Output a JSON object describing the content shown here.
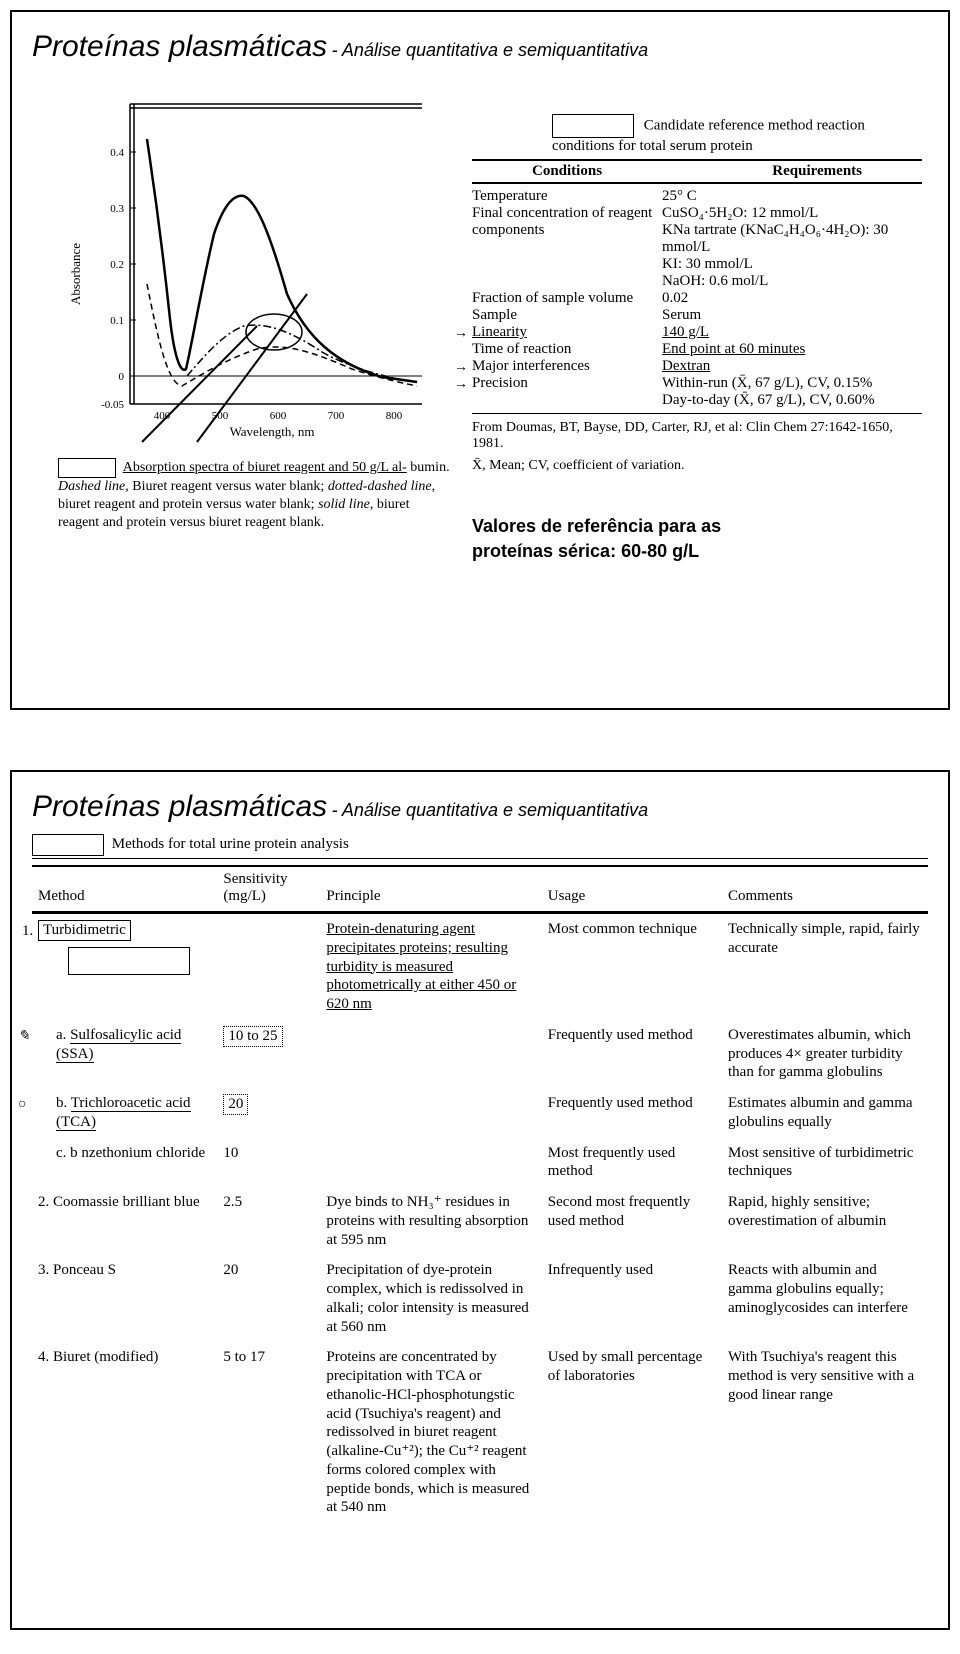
{
  "slide1": {
    "title_main": "Proteínas plasmáticas",
    "title_sep": " - ",
    "title_sub": "Análise quantitativa e semiquantitativa",
    "chart": {
      "type": "line",
      "x_label": "Wavelength, nm",
      "y_label": "Absorbance",
      "x_ticks": [
        "400",
        "500",
        "600",
        "700",
        "800"
      ],
      "y_ticks": [
        "-0.05",
        "0",
        "0.1",
        "0.2",
        "0.3",
        "0.4"
      ],
      "xlim": [
        350,
        850
      ],
      "ylim": [
        -0.05,
        0.45
      ],
      "line_color": "#000000",
      "bg_color": "#ffffff",
      "axis_fontsize": 11,
      "label_fontsize": 12,
      "series": [
        {
          "name": "dashed",
          "style": "dashed",
          "points": [
            [
              380,
              0.15
            ],
            [
              400,
              0.05
            ],
            [
              420,
              -0.02
            ],
            [
              470,
              0.02
            ],
            [
              510,
              0.04
            ],
            [
              550,
              0.06
            ],
            [
              590,
              0.07
            ],
            [
              640,
              0.065
            ],
            [
              700,
              0.04
            ],
            [
              760,
              0.01
            ],
            [
              820,
              -0.01
            ]
          ]
        },
        {
          "name": "solid",
          "style": "solid",
          "points": [
            [
              380,
              0.42
            ],
            [
              400,
              0.32
            ],
            [
              420,
              0.1
            ],
            [
              440,
              0.02
            ],
            [
              460,
              0.1
            ],
            [
              480,
              0.22
            ],
            [
              500,
              0.3
            ],
            [
              520,
              0.32
            ],
            [
              540,
              0.3
            ],
            [
              560,
              0.25
            ],
            [
              580,
              0.18
            ],
            [
              620,
              0.09
            ],
            [
              680,
              0.03
            ],
            [
              760,
              0.0
            ],
            [
              820,
              -0.01
            ]
          ]
        },
        {
          "name": "dotdash",
          "style": "dotdash",
          "points": [
            [
              440,
              0.0
            ],
            [
              480,
              0.06
            ],
            [
              520,
              0.095
            ],
            [
              560,
              0.1
            ],
            [
              600,
              0.09
            ],
            [
              640,
              0.07
            ],
            [
              700,
              0.04
            ],
            [
              780,
              0.01
            ]
          ]
        }
      ],
      "annotation_lines": true
    },
    "chart_caption_lead": "Absorption spectra of biuret reagent and 50 g/L al-",
    "chart_caption_rest": "bumin. Dashed line, Biuret reagent versus water blank; dotted-dashed line, biuret reagent and protein versus water blank; solid line, biuret reagent and protein versus biuret reagent blank.",
    "table": {
      "caption": "Candidate reference method reaction conditions for total serum protein",
      "head_left": "Conditions",
      "head_right": "Requirements",
      "rows": [
        {
          "c1": "Temperature",
          "c2": "25° C",
          "arrow": false,
          "u": false
        },
        {
          "c1": "Final concentration of reagent components",
          "c2": "CuSO₄·5H₂O: 12 mmol/L\nKNa tartrate (KNaC₄H₄O₆·4H₂O): 30 mmol/L\nKI: 30 mmol/L\nNaOH: 0.6 mol/L",
          "arrow": false,
          "u": false
        },
        {
          "c1": "Fraction of sample volume",
          "c2": "0.02",
          "arrow": false,
          "u": false
        },
        {
          "c1": "Sample",
          "c2": "Serum",
          "arrow": false,
          "u": false
        },
        {
          "c1": "Linearity",
          "c2": "140 g/L",
          "arrow": true,
          "u": true,
          "u2": true
        },
        {
          "c1": "Time of reaction",
          "c2": "End point at 60 minutes",
          "arrow": false,
          "u": false,
          "u2": true
        },
        {
          "c1": "Major interferences",
          "c2": "Dextran",
          "arrow": true,
          "u": false,
          "u2": true
        },
        {
          "c1": "Precision",
          "c2": "Within-run (X̄, 67 g/L), CV, 0.15%\nDay-to-day (X̄, 67 g/L), CV, 0.60%",
          "arrow": true,
          "u": false
        }
      ],
      "footnote1": "From Doumas, BT, Bayse, DD, Carter, RJ, et al: Clin Chem 27:1642-1650, 1981.",
      "footnote2": "X̄, Mean; CV, coefficient of variation."
    },
    "ref_values_l1": "Valores de referência para as",
    "ref_values_l2": "proteínas sérica: 60-80 g/L"
  },
  "slide2": {
    "title_main": "Proteínas plasmáticas",
    "title_sep": " - ",
    "title_sub": "Análise quantitativa e semiquantitativa",
    "table_title": "Methods for total urine protein analysis",
    "columns": [
      "Method",
      "Sensitivity (mg/L)",
      "Principle",
      "Usage",
      "Comments"
    ],
    "rows": [
      {
        "num": "1.",
        "method": "Turbidimetric",
        "boxed": true,
        "u": false,
        "sens": "",
        "sens_boxed": false,
        "princ": "Protein-denaturing agent precipitates proteins; resulting turbidity is measured photometrically at either 450 or 620 nm",
        "princ_u": true,
        "usage": "Most common technique",
        "comm": "Technically simple, rapid, fairly accurate",
        "show_empty_box": true
      },
      {
        "sub": "a.",
        "method": "Sulfosalicylic acid (SSA)",
        "u": true,
        "sens": "10 to 25",
        "sens_boxed": true,
        "princ": "",
        "usage": "Frequently used method",
        "comm": "Overestimates albumin, which produces 4× greater turbidity than for gamma globulins",
        "scribble": "✎"
      },
      {
        "sub": "b.",
        "method": "Trichloroacetic acid (TCA)",
        "u": true,
        "sens": "20",
        "sens_boxed": true,
        "princ": "",
        "usage": "Frequently used method",
        "comm": "Estimates albumin and gamma globulins equally",
        "scribble": "○"
      },
      {
        "sub": "c.",
        "method": "b nzethonium chloride",
        "u": false,
        "sens": "10",
        "sens_boxed": false,
        "princ": "",
        "usage": "Most frequently used method",
        "comm": "Most sensitive of turbidimetric techniques"
      },
      {
        "num": "2.",
        "method": "Coomassie brilliant blue",
        "u": false,
        "sens": "2.5",
        "sens_boxed": false,
        "princ": "Dye binds to NH₃⁺ residues in proteins with resulting absorption at 595 nm",
        "usage": "Second most frequently used method",
        "comm": "Rapid, highly sensitive; overestimation of albumin"
      },
      {
        "num": "3.",
        "method": "Ponceau S",
        "u": false,
        "sens": "20",
        "sens_boxed": false,
        "princ": "Precipitation of dye-protein complex, which is redissolved in alkali; color intensity is measured at 560 nm",
        "usage": "Infrequently used",
        "comm": "Reacts with albumin and gamma globulins equally; aminoglycosides can interfere"
      },
      {
        "num": "4.",
        "method": "Biuret (modified)",
        "u": false,
        "sens": "5 to 17",
        "sens_boxed": false,
        "princ": "Proteins are concentrated by precipitation with TCA or ethanolic-HCl-phosphotungstic acid (Tsuchiya's reagent) and redissolved in biuret reagent (alkaline-Cu⁺²); the Cu⁺² reagent forms colored complex with peptide bonds, which is measured at 540 nm",
        "usage": "Used by small percentage of laboratories",
        "comm": "With Tsuchiya's reagent this method is very sensitive with a good linear range"
      }
    ]
  }
}
